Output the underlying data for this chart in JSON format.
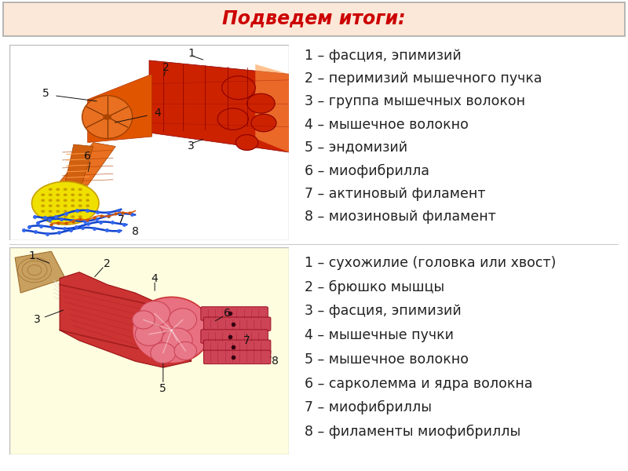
{
  "title": "Подведем итоги:",
  "title_color": "#cc0000",
  "title_bg_color": "#fce8d8",
  "title_border_color": "#aaaaaa",
  "bg_color": "#ffffff",
  "panel1_bg": "#ffffff",
  "panel2_bg": "#fffde0",
  "panel_border": "#bbbbbb",
  "list1": [
    "1 – фасция, эпимизий",
    "2 – перимизий мышечного пучка",
    "3 – группа мышечных волокон",
    "4 – мышечное волокно",
    "5 – эндомизий",
    "6 – миофибрилла",
    "7 – актиновый филамент",
    "8 – миозиновый филамент"
  ],
  "list2": [
    "1 – сухожилие (головка или хвост)",
    "2 – брюшко мышцы",
    "3 – фасция, эпимизий",
    "4 – мышечные пучки",
    "5 – мышечное волокно",
    "6 – сарколемма и ядра волокна",
    "7 – миофибриллы",
    "8 – филаменты миофибриллы"
  ],
  "text_color": "#222222",
  "label_color": "#111111",
  "text_fontsize": 12.5,
  "label_fontsize": 10,
  "title_fontsize": 17
}
